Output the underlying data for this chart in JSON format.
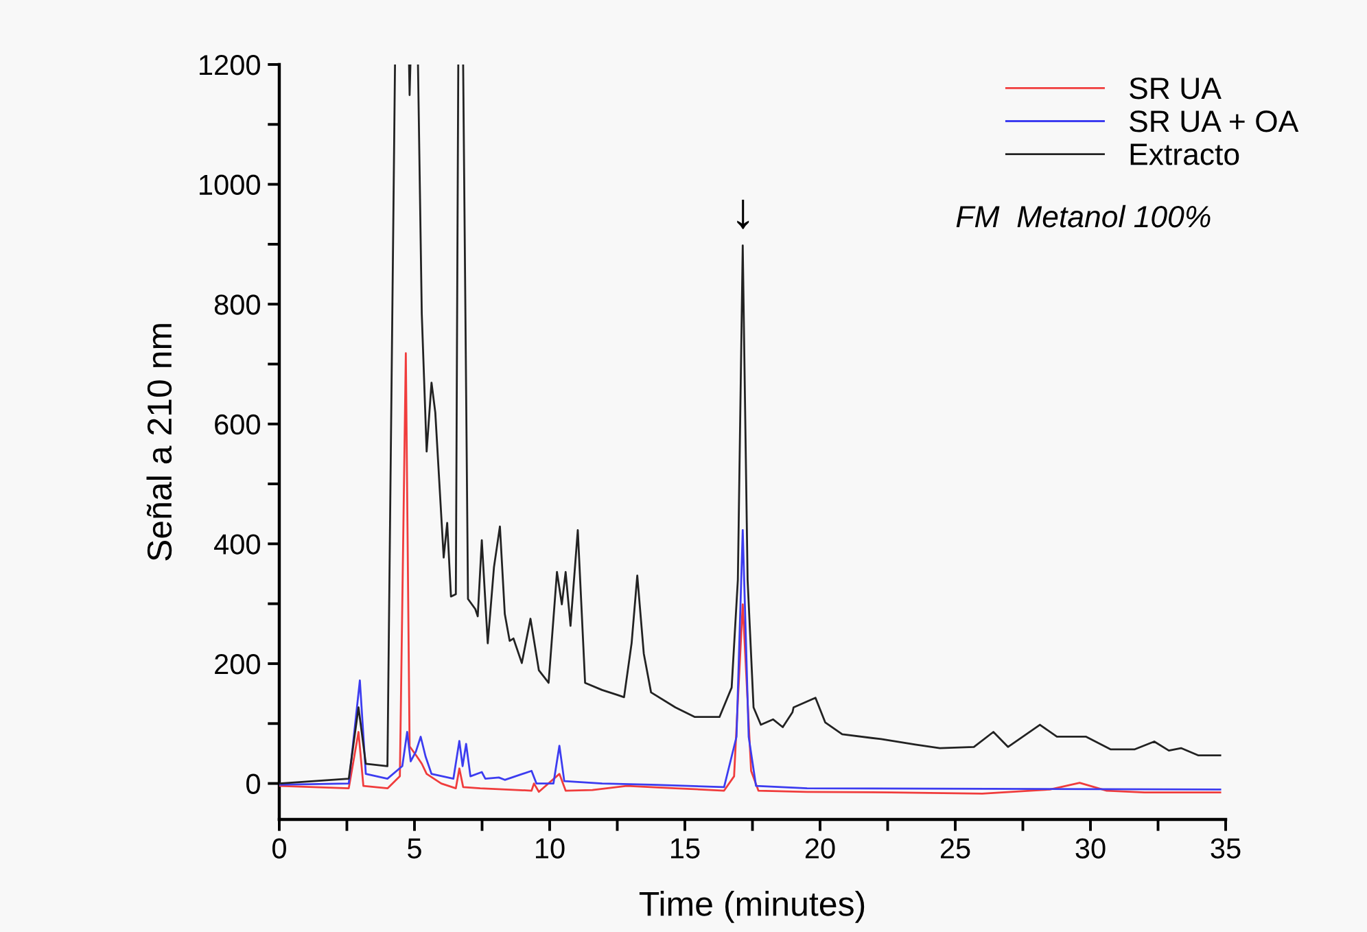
{
  "chart_data": {
    "type": "line",
    "xlabel": "Time (minutes)",
    "ylabel": "Señal a 210 nm",
    "xlim": [
      0,
      35
    ],
    "ylim": [
      -60,
      1200
    ],
    "xticks": [
      0,
      {
        "value": 2.5,
        "label": null
      },
      5,
      {
        "value": 7.5,
        "label": null
      },
      10,
      {
        "value": 12.5,
        "label": null
      },
      15,
      {
        "value": 17.5,
        "label": null
      },
      20,
      {
        "value": 22.5,
        "label": null
      },
      25,
      {
        "value": 27.5,
        "label": null
      },
      30,
      {
        "value": 32.5,
        "label": null
      },
      35
    ],
    "yticks": [
      0,
      {
        "value": 100,
        "label": null
      },
      200,
      {
        "value": 300,
        "label": null
      },
      400,
      {
        "value": 500,
        "label": null
      },
      600,
      {
        "value": 700,
        "label": null
      },
      800,
      {
        "value": 900,
        "label": null
      },
      1000,
      {
        "value": 1100,
        "label": null
      },
      1200
    ],
    "grid": false,
    "legend": "top right",
    "marker": "none",
    "line_style": "solid",
    "annotations": [
      {
        "text": "↓",
        "x": 17.15,
        "y": 898
      },
      "FM  Metanol 100%"
    ],
    "series": [
      {
        "name": "SR UA",
        "color": "#f03c3c",
        "x": [
          0,
          2.57,
          2.93,
          3.11,
          4.01,
          4.46,
          4.68,
          4.82,
          5.09,
          5.27,
          5.45,
          5.99,
          6.53,
          6.66,
          6.8,
          7.43,
          9.33,
          9.42,
          9.6,
          10.36,
          10.59,
          11.58,
          12.85,
          14.65,
          16.45,
          16.82,
          17.14,
          17.45,
          17.72,
          19.52,
          22.6,
          26.0,
          28.5,
          29.6,
          30.6,
          32.0,
          34.8
        ],
        "values": [
          -4,
          -8,
          86,
          -4,
          -8,
          12,
          718,
          62,
          45,
          33,
          16,
          0,
          -8,
          25,
          -6,
          -8,
          -12,
          0,
          -14,
          16,
          -12,
          -11,
          -4,
          -8,
          -12,
          12,
          299,
          21,
          -12,
          -14,
          -15,
          -17,
          -10,
          1,
          -12,
          -15,
          -15
        ]
      },
      {
        "name": "SR UA + OA",
        "color": "#3c3cf0",
        "x": [
          0,
          2.57,
          2.98,
          3.2,
          4.0,
          4.55,
          4.73,
          4.86,
          5.05,
          5.23,
          5.41,
          5.63,
          6.44,
          6.66,
          6.78,
          6.91,
          7.07,
          7.49,
          7.62,
          8.12,
          8.34,
          9.33,
          9.51,
          10.14,
          10.36,
          10.54,
          11.94,
          13.75,
          16.45,
          16.91,
          17.14,
          17.36,
          17.63,
          19.52,
          34.8
        ],
        "values": [
          -2,
          0,
          172,
          16,
          8,
          29,
          86,
          37,
          53,
          78,
          45,
          16,
          8,
          71,
          29,
          66,
          12,
          19,
          8,
          10,
          6,
          21,
          0,
          0,
          63,
          4,
          0,
          -2,
          -6,
          78,
          423,
          78,
          -4,
          -8,
          -10
        ]
      },
      {
        "name": "Extracto",
        "color": "#222222",
        "x": [
          0,
          2.57,
          2.93,
          3.2,
          4.0,
          4.28,
          4.5,
          4.8,
          4.82,
          4.85,
          5.0,
          5.13,
          5.27,
          5.45,
          5.63,
          5.77,
          6.08,
          6.21,
          6.35,
          6.53,
          6.62,
          6.7,
          6.8,
          6.98,
          7.25,
          7.34,
          7.49,
          7.71,
          7.94,
          8.16,
          8.34,
          8.52,
          8.66,
          8.97,
          9.29,
          9.6,
          9.96,
          10.27,
          10.45,
          10.59,
          10.77,
          11.04,
          11.31,
          11.94,
          12.49,
          12.75,
          13.03,
          13.24,
          13.48,
          13.75,
          14.65,
          15.37,
          16.28,
          16.73,
          16.96,
          17.14,
          17.32,
          17.54,
          17.81,
          18.26,
          18.62,
          18.98,
          19.02,
          19.83,
          20.19,
          20.82,
          22.26,
          23.52,
          24.43,
          25.69,
          26.41,
          26.95,
          28.13,
          28.76,
          29.84,
          30.74,
          31.64,
          32.36,
          32.9,
          33.35,
          33.98,
          34.8
        ],
        "values": [
          0,
          8,
          127,
          33,
          29,
          1200,
          null,
          1200,
          1149,
          1200,
          null,
          1200,
          784,
          554,
          669,
          619,
          377,
          435,
          312,
          316,
          1200,
          null,
          1200,
          308,
          291,
          279,
          406,
          234,
          361,
          429,
          283,
          238,
          242,
          201,
          275,
          189,
          168,
          353,
          299,
          353,
          263,
          423,
          168,
          156,
          148,
          144,
          234,
          347,
          217,
          152,
          127,
          111,
          111,
          160,
          340,
          898,
          340,
          127,
          98,
          107,
          94,
          119,
          127,
          143,
          102,
          82,
          74,
          65,
          59,
          61,
          86,
          61,
          98,
          78,
          78,
          57,
          57,
          70,
          55,
          59,
          47,
          47
        ]
      }
    ]
  }
}
